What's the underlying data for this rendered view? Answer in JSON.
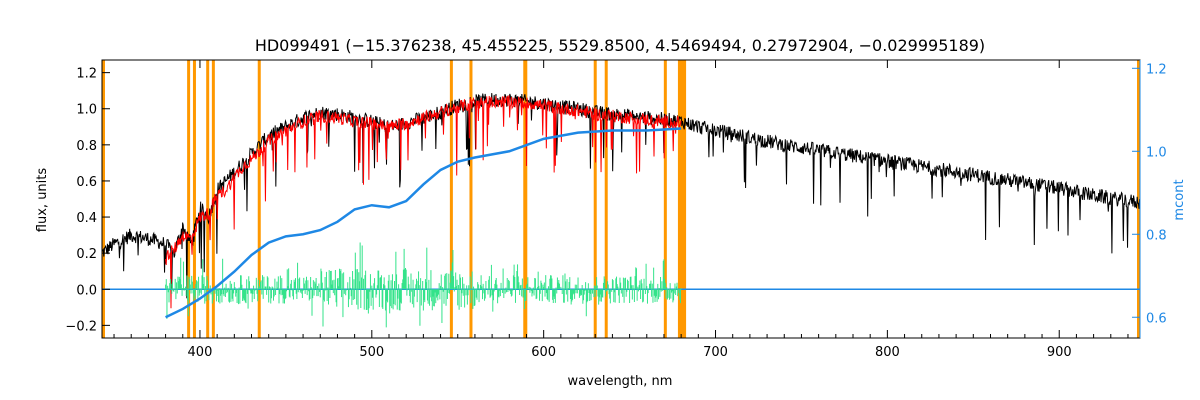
{
  "chart_data": {
    "type": "line",
    "title": "HD099491    (−15.376238, 45.455225, 5529.8500, 4.5469494, 0.27972904, −0.029995189)",
    "xlabel": "wavelength, nm",
    "ylabel": "flux, units",
    "y2label": "mcont",
    "xlim": [
      343,
      947
    ],
    "ylim": [
      -0.27,
      1.27
    ],
    "y2lim": [
      0.55,
      1.22
    ],
    "x_ticks": [
      400,
      500,
      600,
      700,
      800,
      900
    ],
    "y_ticks": [
      -0.2,
      0.0,
      0.2,
      0.4,
      0.6,
      0.8,
      1.0,
      1.2
    ],
    "y2_ticks": [
      0.6,
      0.8,
      1.0,
      1.2
    ],
    "x_tick_labels": [
      "400",
      "500",
      "600",
      "700",
      "800",
      "900"
    ],
    "y_tick_labels": [
      "−0.2",
      "0.0",
      "0.2",
      "0.4",
      "0.6",
      "0.8",
      "1.0",
      "1.2"
    ],
    "y2_tick_labels": [
      "0.6",
      "0.8",
      "1.0",
      "1.2"
    ],
    "grid": false,
    "masked_lines_nm": [
      393.4,
      396.8,
      404.5,
      407.8,
      434.5,
      546.3,
      557.7,
      589.0,
      589.6,
      630.0,
      636.4,
      670.8,
      679.0,
      680.5,
      682.0
    ],
    "series": [
      {
        "role": "observed",
        "color": "#000000",
        "x": [
          343,
          350,
          360,
          370,
          380,
          385,
          390,
          395,
          400,
          405,
          410,
          415,
          420,
          425,
          430,
          440,
          450,
          460,
          470,
          480,
          490,
          500,
          510,
          520,
          530,
          540,
          550,
          560,
          570,
          580,
          590,
          600,
          610,
          620,
          630,
          640,
          650,
          660,
          670,
          680,
          690,
          700,
          720,
          740,
          760,
          780,
          800,
          820,
          840,
          860,
          880,
          900,
          920,
          940,
          947
        ],
        "y": [
          0.2,
          0.25,
          0.3,
          0.28,
          0.25,
          0.2,
          0.35,
          0.25,
          0.45,
          0.4,
          0.55,
          0.6,
          0.65,
          0.7,
          0.75,
          0.85,
          0.9,
          0.95,
          0.98,
          0.97,
          0.95,
          0.93,
          0.9,
          0.92,
          0.95,
          0.98,
          1.02,
          1.04,
          1.05,
          1.05,
          1.04,
          1.03,
          1.01,
          1.0,
          0.98,
          0.97,
          0.96,
          0.95,
          0.94,
          0.93,
          0.9,
          0.88,
          0.84,
          0.8,
          0.77,
          0.74,
          0.71,
          0.68,
          0.65,
          0.62,
          0.59,
          0.56,
          0.52,
          0.49,
          0.48
        ]
      },
      {
        "role": "model",
        "color": "#ff0000",
        "x": [
          380,
          385,
          390,
          395,
          400,
          405,
          410,
          415,
          420,
          425,
          430,
          440,
          450,
          460,
          470,
          480,
          490,
          500,
          510,
          520,
          530,
          540,
          550,
          560,
          570,
          580,
          590,
          600,
          610,
          620,
          630,
          640,
          650,
          660,
          670,
          680
        ],
        "y": [
          0.18,
          0.22,
          0.3,
          0.28,
          0.4,
          0.42,
          0.52,
          0.55,
          0.62,
          0.68,
          0.72,
          0.82,
          0.88,
          0.93,
          0.96,
          0.95,
          0.93,
          0.92,
          0.9,
          0.92,
          0.95,
          0.98,
          1.01,
          1.03,
          1.04,
          1.04,
          1.03,
          1.02,
          1.0,
          0.99,
          0.97,
          0.96,
          0.95,
          0.94,
          0.93,
          0.92
        ]
      },
      {
        "role": "residuals",
        "color": "#33e38a",
        "x_start": 380,
        "x_end": 680,
        "y_center": 0.0,
        "y_amplitude": 0.08
      },
      {
        "role": "continuum",
        "color": "#1e88e5",
        "axis": "right",
        "x": [
          380,
          390,
          400,
          410,
          420,
          430,
          440,
          450,
          460,
          470,
          480,
          490,
          500,
          510,
          520,
          530,
          540,
          550,
          560,
          580,
          600,
          620,
          640,
          660,
          680
        ],
        "y": [
          0.6,
          0.62,
          0.645,
          0.675,
          0.71,
          0.75,
          0.78,
          0.795,
          0.8,
          0.81,
          0.83,
          0.86,
          0.87,
          0.865,
          0.88,
          0.92,
          0.955,
          0.975,
          0.985,
          1.0,
          1.03,
          1.045,
          1.05,
          1.05,
          1.055
        ]
      },
      {
        "role": "baseline",
        "color": "#1e88e5",
        "x": [
          343,
          380,
          680,
          947
        ],
        "y": [
          0.0,
          0.0,
          0.0,
          0.0
        ]
      }
    ]
  }
}
